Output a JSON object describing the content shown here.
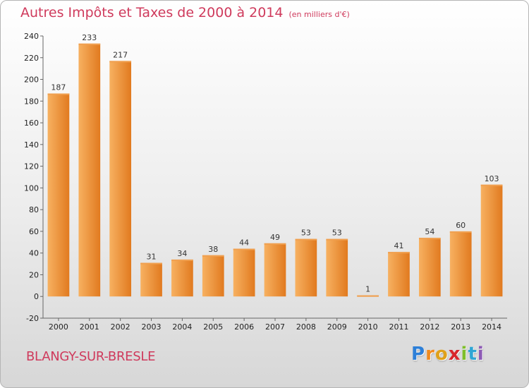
{
  "title": "Autres Impôts et Taxes de 2000 à 2014",
  "subtitle": "(en milliers d'€)",
  "commune": "BLANGY-SUR-BRESLE",
  "logo": {
    "letters": [
      "P",
      "r",
      "o",
      "x",
      "i",
      "t",
      "i"
    ],
    "colors": [
      "#2d7fd8",
      "#f08a1e",
      "#e0a11a",
      "#d8262b",
      "#7fbf2a",
      "#2ea6d4",
      "#8d5bb5"
    ]
  },
  "chart_data": {
    "type": "bar",
    "title": "Autres Impôts et Taxes de 2000 à 2014",
    "subtitle": "(en milliers d'€)",
    "categories": [
      "2000",
      "2001",
      "2002",
      "2003",
      "2004",
      "2005",
      "2006",
      "2007",
      "2008",
      "2009",
      "2010",
      "2011",
      "2012",
      "2013",
      "2014"
    ],
    "values": [
      187,
      233,
      217,
      31,
      34,
      38,
      44,
      49,
      53,
      53,
      1,
      41,
      54,
      60,
      103
    ],
    "ylim": [
      -20,
      240
    ],
    "yticks": [
      -20,
      0,
      20,
      40,
      60,
      80,
      100,
      120,
      140,
      160,
      180,
      200,
      220,
      240
    ],
    "grid": false,
    "bar_colors": {
      "left": "#f7b161",
      "right": "#e17a1f",
      "top": "#f0a050"
    },
    "xlabel": "",
    "ylabel": ""
  }
}
